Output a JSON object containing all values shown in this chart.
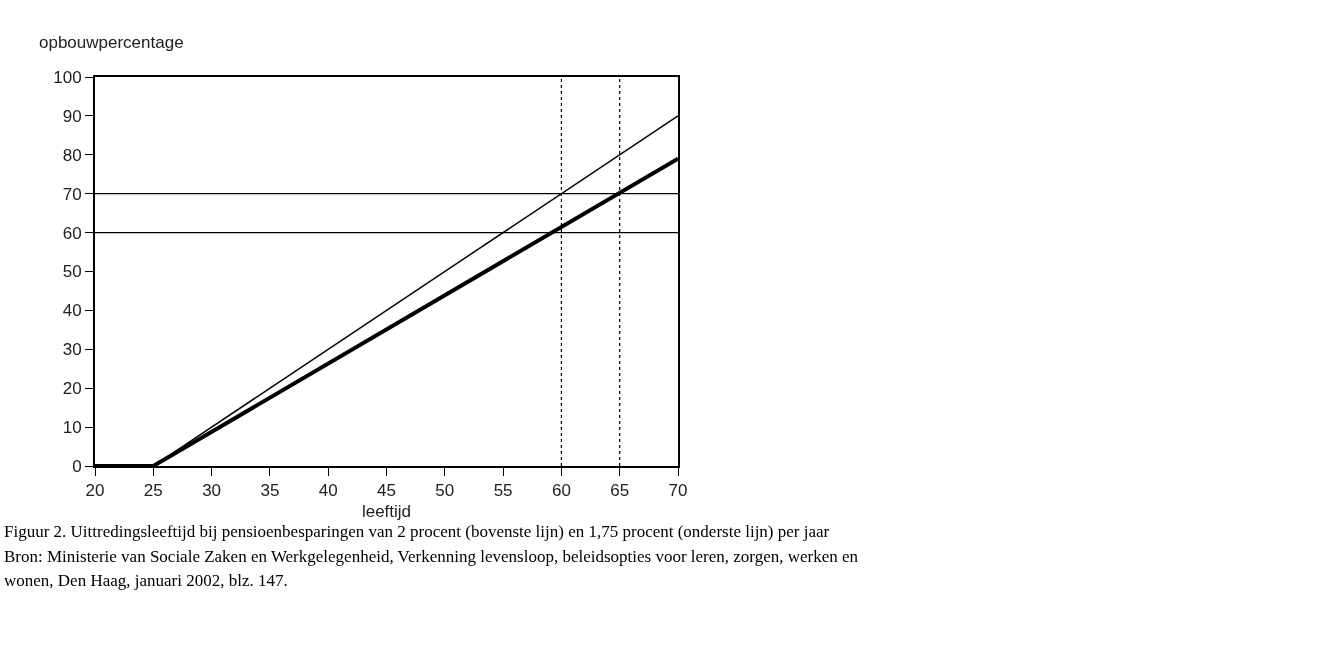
{
  "chart_data": {
    "type": "line",
    "ylabel": "opbouwpercentage",
    "xlabel": "leeftijd",
    "x": [
      20,
      25,
      70
    ],
    "series": [
      {
        "color": "#000000",
        "values": [
          0,
          0,
          90
        ]
      },
      {
        "color": "#000000",
        "values": [
          0,
          0,
          79
        ]
      }
    ],
    "xlim": [
      20,
      70
    ],
    "xticks": [
      20,
      25,
      30,
      35,
      40,
      45,
      50,
      55,
      60,
      65,
      70
    ],
    "ylim": [
      0,
      100
    ],
    "yticks": [
      0,
      10,
      20,
      30,
      40,
      50,
      60,
      70,
      80,
      90,
      100
    ],
    "marker": "none",
    "line_style": "solid",
    "ref_lines": [
      {
        "axis": "y",
        "value": 60,
        "color": "#000000",
        "line_style": "solid"
      },
      {
        "axis": "y",
        "value": 70,
        "color": "#000000",
        "line_style": "solid"
      },
      {
        "axis": "x",
        "value": 60,
        "color": "#000000",
        "line_style": "dotted"
      },
      {
        "axis": "x",
        "value": 65,
        "color": "#000000",
        "line_style": "dotted"
      }
    ],
    "annotations": [
      "Figuur 2. Uittredingsleeftijd bij pensioenbesparingen van 2 procent (bovenste lijn) en 1,75 procent (onderste lijn) per jaar",
      "Bron: Ministerie van Sociale Zaken en Werkgelegenheid, Verkenning levensloop, beleidsopties voor leren, zorgen, werken en",
      "wonen, Den Haag, januari 2002, blz. 147."
    ]
  }
}
